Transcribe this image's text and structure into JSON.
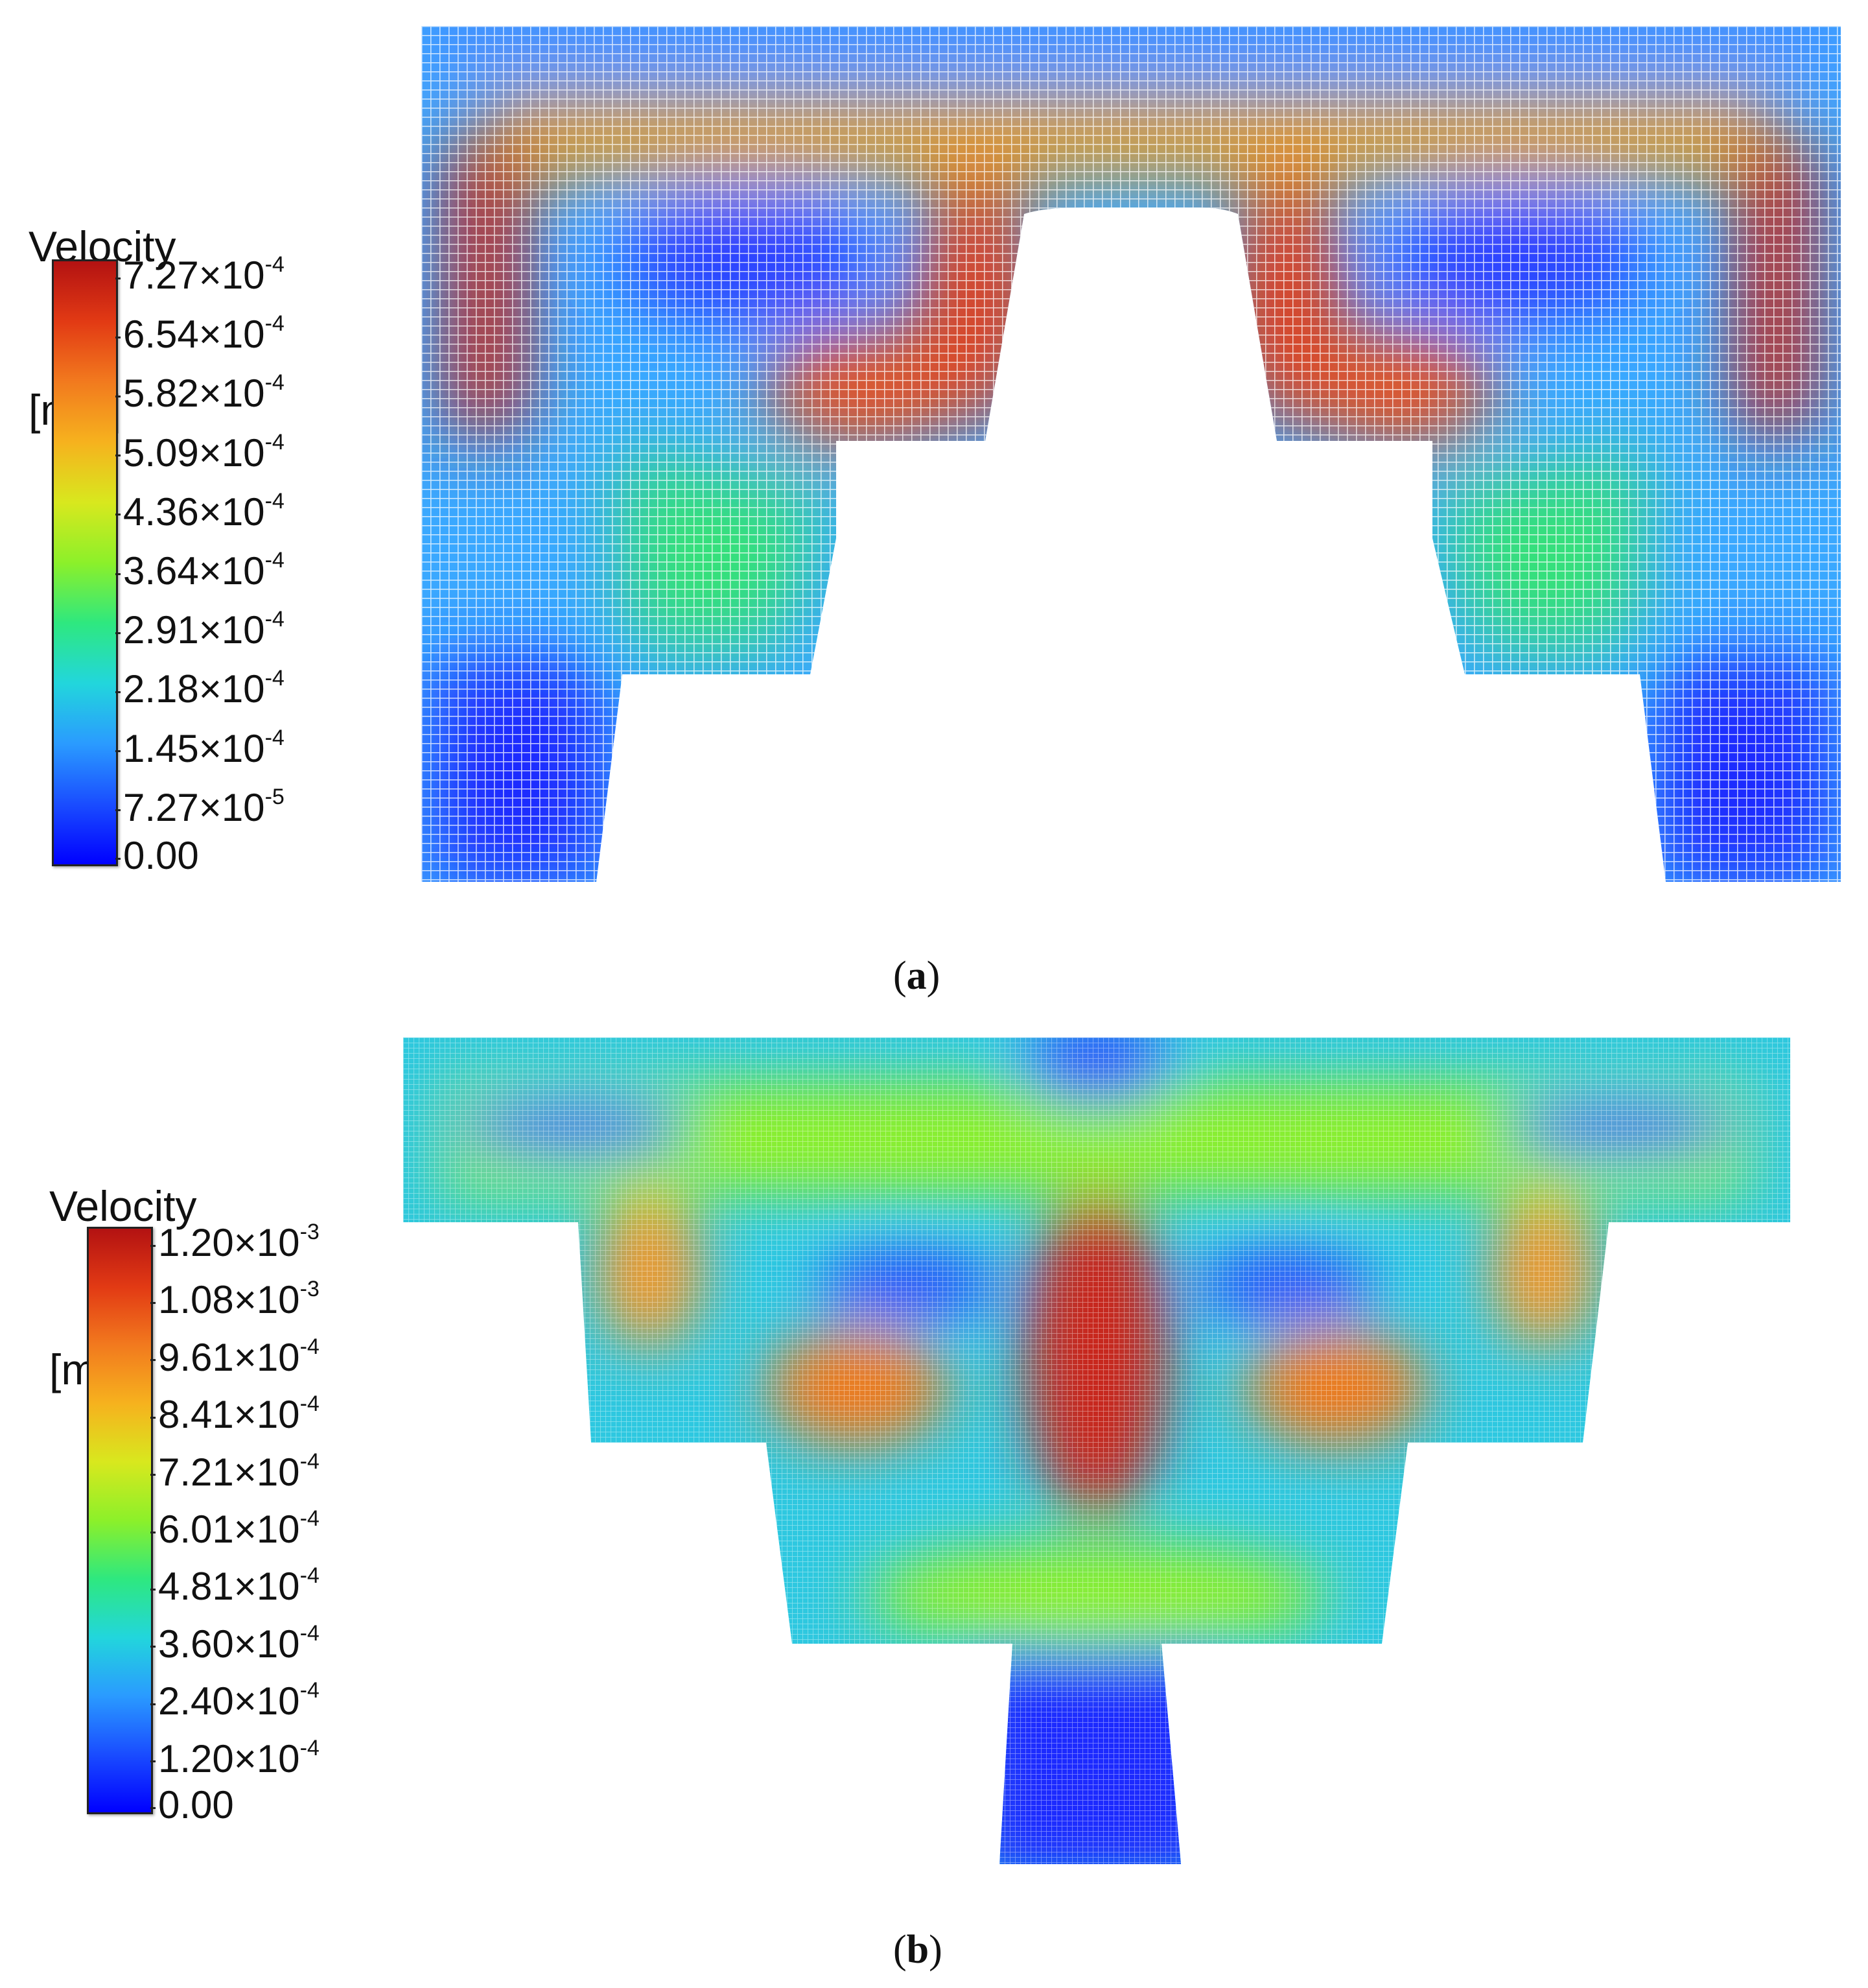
{
  "panels": [
    {
      "label_open": "(",
      "label_letter": "a",
      "label_close": ")",
      "legend_title": "Velocity",
      "legend_unit": "[m/s]",
      "ticks": [
        {
          "mantissa": "7.27×10",
          "exp": "-4"
        },
        {
          "mantissa": "6.54×10",
          "exp": "-4"
        },
        {
          "mantissa": "5.82×10",
          "exp": "-4"
        },
        {
          "mantissa": "5.09×10",
          "exp": "-4"
        },
        {
          "mantissa": "4.36×10",
          "exp": "-4"
        },
        {
          "mantissa": "3.64×10",
          "exp": "-4"
        },
        {
          "mantissa": "2.91×10",
          "exp": "-4"
        },
        {
          "mantissa": "2.18×10",
          "exp": "-4"
        },
        {
          "mantissa": "1.45×10",
          "exp": "-4"
        },
        {
          "mantissa": "7.27×10",
          "exp": "-5"
        },
        {
          "mantissa": "0.00",
          "exp": ""
        }
      ]
    },
    {
      "label_open": "(",
      "label_letter": "b",
      "label_close": ")",
      "legend_title": "Velocity",
      "legend_unit": "[m/s]",
      "ticks": [
        {
          "mantissa": "1.20×10",
          "exp": "-3"
        },
        {
          "mantissa": "1.08×10",
          "exp": "-3"
        },
        {
          "mantissa": "9.61×10",
          "exp": "-4"
        },
        {
          "mantissa": "8.41×10",
          "exp": "-4"
        },
        {
          "mantissa": "7.21×10",
          "exp": "-4"
        },
        {
          "mantissa": "6.01×10",
          "exp": "-4"
        },
        {
          "mantissa": "4.81×10",
          "exp": "-4"
        },
        {
          "mantissa": "3.60×10",
          "exp": "-4"
        },
        {
          "mantissa": "2.40×10",
          "exp": "-4"
        },
        {
          "mantissa": "1.20×10",
          "exp": "-4"
        },
        {
          "mantissa": "0.00",
          "exp": ""
        }
      ]
    }
  ],
  "colors": {
    "colormap": [
      "#0000ff",
      "#1a4dff",
      "#2a9bff",
      "#22d6dc",
      "#2ee87f",
      "#8cf02a",
      "#d8e81e",
      "#f6b21e",
      "#f27a1e",
      "#e23a14",
      "#b31212"
    ],
    "background": "#ffffff"
  }
}
